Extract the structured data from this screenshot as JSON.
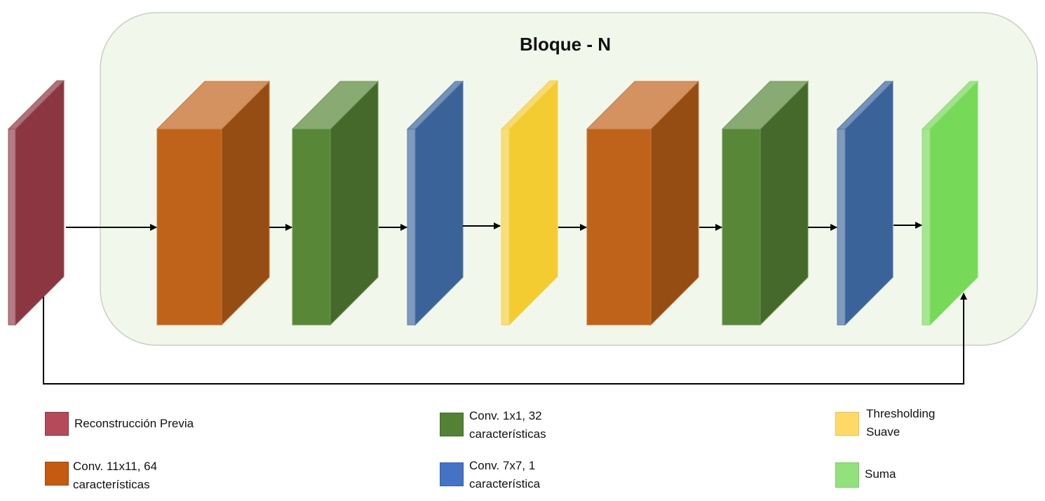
{
  "block_title": "Bloque - N",
  "colors": {
    "block_fill": "#f1f7ea",
    "block_stroke": "#c9d1c4",
    "reconstruction": "#8c3642",
    "conv11": "#c0631a",
    "conv1": "#578737",
    "conv7": "#3a6399",
    "threshold": "#f3cc32",
    "sum": "#76d957",
    "arrow": "#000000"
  },
  "legend": {
    "reconstruction": {
      "label": "Reconstrucción Previa",
      "color": "#b54b5a"
    },
    "conv11": {
      "label": "Conv. 11x11, 64\ncaracterísticas",
      "color": "#c55a11"
    },
    "conv1": {
      "label": "Conv. 1x1, 32\ncaracterísticas",
      "color": "#548235"
    },
    "conv7": {
      "label": "Conv. 7x7, 1\ncaracterística",
      "color": "#4472c4"
    },
    "threshold": {
      "label": "Thresholding\nSuave",
      "color": "#ffd966"
    },
    "sum": {
      "label": "Suma",
      "color": "#92e17c"
    }
  }
}
